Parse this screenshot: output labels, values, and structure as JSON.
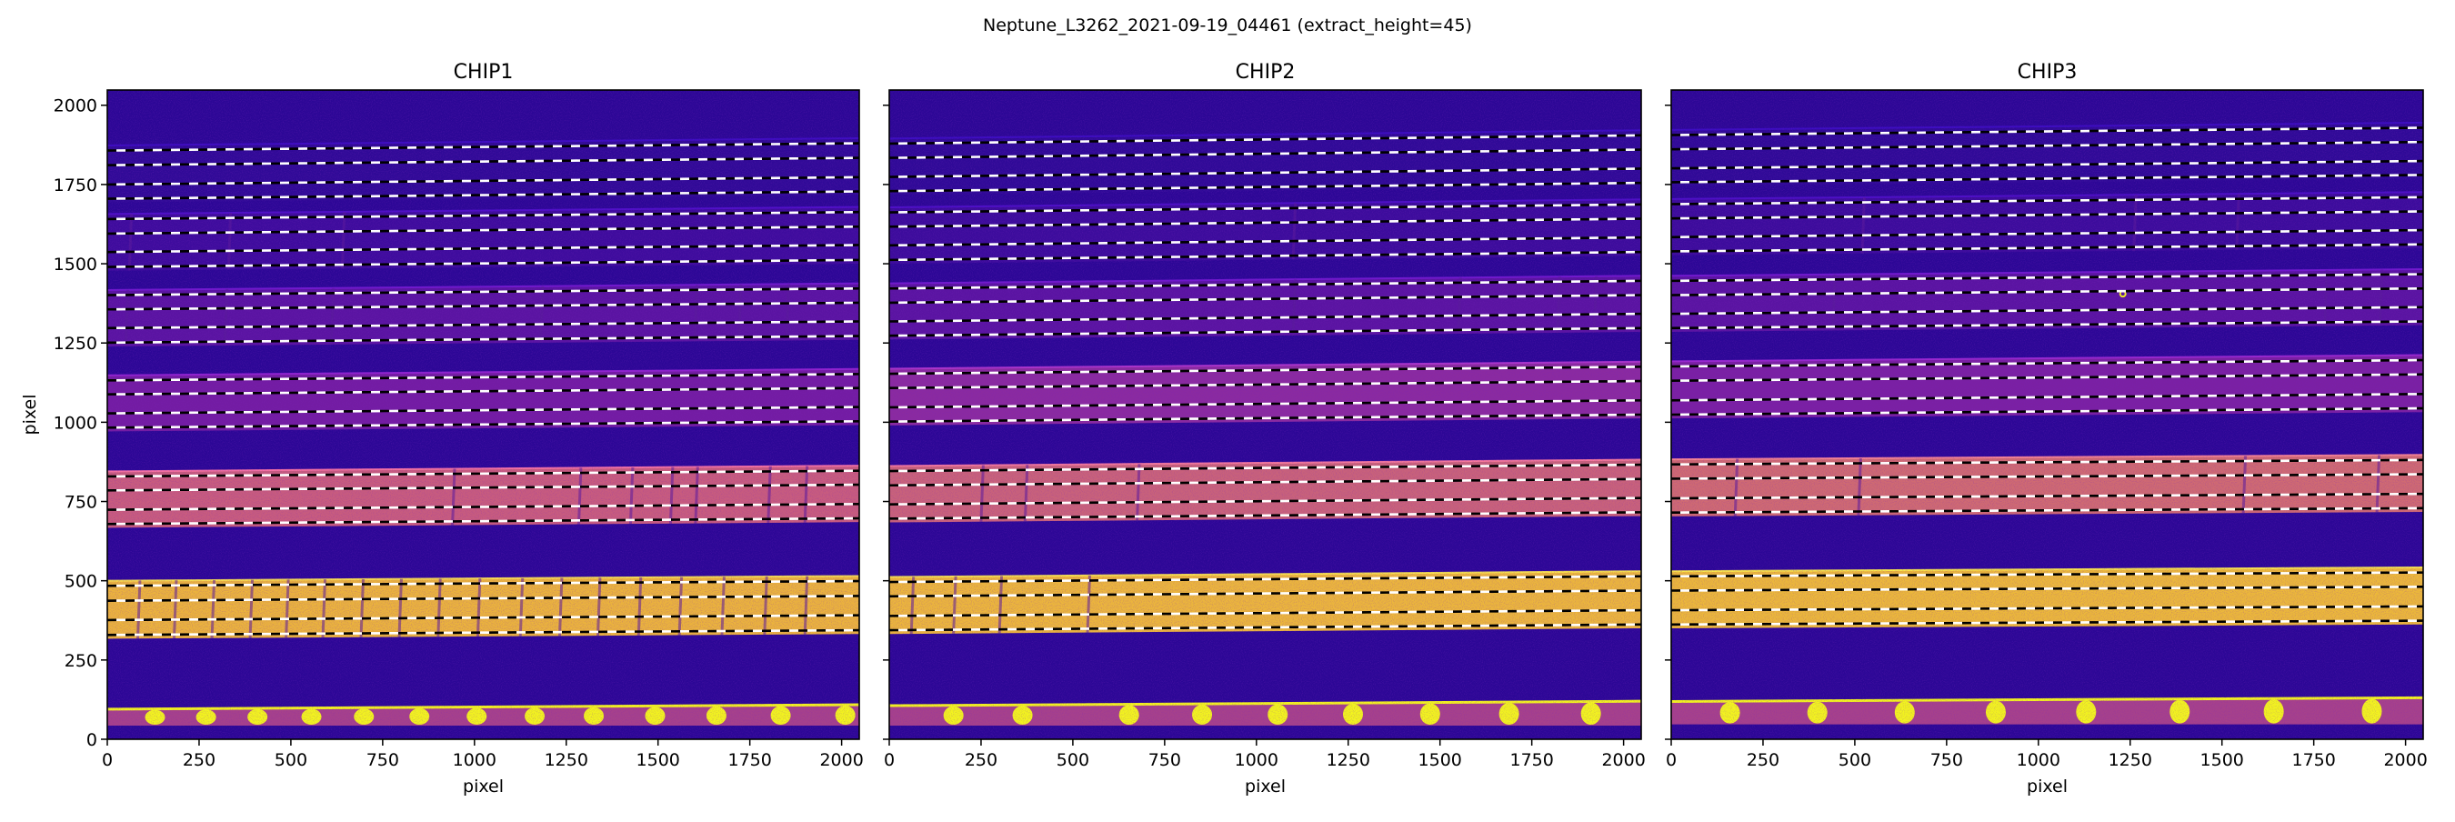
{
  "figure": {
    "suptitle": "Neptune_L3262_2021-09-19_04461  (extract_height=45)"
  },
  "chart_data": {
    "type": "heatmap",
    "title": "Neptune_L3262_2021-09-19_04461  (extract_height=45)",
    "colormap": "plasma",
    "xlim": [
      0,
      2048
    ],
    "ylim": [
      0,
      2048
    ],
    "xlabel": "pixel",
    "ylabel": "pixel",
    "xticks": [
      0,
      250,
      500,
      750,
      1000,
      1250,
      1500,
      1750,
      2000
    ],
    "yticks": [
      0,
      250,
      500,
      750,
      1000,
      1250,
      1500,
      1750,
      2000
    ],
    "xtick_labels": [
      "0",
      "250",
      "500",
      "750",
      "1000",
      "1250",
      "1500",
      "1750",
      "2000"
    ],
    "ytick_labels": [
      "0",
      "250",
      "500",
      "750",
      "1000",
      "1250",
      "1500",
      "1750",
      "2000"
    ],
    "colors": {
      "background": "#2c0796",
      "trace_light": "#ffffff",
      "trace_dark": "#000000",
      "bright_spot": "#f3f41e",
      "absorption": "#5a1a9a"
    },
    "panels": [
      {
        "title": "CHIP1",
        "orders": [
          {
            "color": "#300a97",
            "traces_left": [
              1857,
              1811,
              1750,
              1705
            ],
            "slope": 23,
            "absorption_x": []
          },
          {
            "color": "#3e0c9d",
            "traces_left": [
              1641,
              1595,
              1537,
              1490
            ],
            "slope": 22,
            "absorption_x": [
              60,
              330,
              640
            ]
          },
          {
            "color": "#5a14a2",
            "traces_left": [
              1401,
              1356,
              1297,
              1251
            ],
            "slope": 21,
            "absorption_x": [
              50,
              320,
              610,
              1180,
              1600,
              1720,
              1850
            ]
          },
          {
            "color": "#731ca3",
            "traces_left": [
              1132,
              1088,
              1028,
              983
            ],
            "slope": 20,
            "absorption_x": []
          },
          {
            "color": "#c85c7e",
            "traces_left": [
              829,
              785,
              724,
              679
            ],
            "slope": 18,
            "absorption_x": [
              940,
              1284,
              1425,
              1534,
              1602,
              1800,
              1900
            ]
          },
          {
            "color": "#ebb33d",
            "traces_left": [
              484,
              437,
              376,
              329
            ],
            "slope": 15,
            "absorption_x": [
              83,
              182,
              285,
              389,
              487,
              587,
              691,
              795,
              901,
              1009,
              1125,
              1232,
              1336,
              1447,
              1558,
              1674,
              1790,
              1900
            ]
          }
        ],
        "bottom_band": {
          "left": [
            43,
            95
          ],
          "right": [
            43,
            109
          ],
          "color": "#a6418b"
        },
        "bright_spots_x": [
          130,
          269,
          409,
          556,
          699,
          850,
          1006,
          1164,
          1325,
          1492,
          1659,
          1834,
          2010
        ],
        "xlabel": "pixel",
        "ylabel": "pixel"
      },
      {
        "title": "CHIP2",
        "orders": [
          {
            "color": "#2f0a97",
            "traces_left": [
              1879,
              1834,
              1774,
              1729
            ],
            "slope": 26,
            "absorption_x": []
          },
          {
            "color": "#3c0c9c",
            "traces_left": [
              1662,
              1617,
              1558,
              1512
            ],
            "slope": 25,
            "absorption_x": [
              1100
            ]
          },
          {
            "color": "#5a14a2",
            "traces_left": [
              1422,
              1377,
              1318,
              1273
            ],
            "slope": 24,
            "absorption_x": [
              650,
              1100,
              1550,
              1820,
              1920
            ]
          },
          {
            "color": "#8a2aa0",
            "traces_left": [
              1153,
              1108,
              1047,
              1002
            ],
            "slope": 22,
            "absorption_x": []
          },
          {
            "color": "#c9627a",
            "traces_left": [
              846,
              801,
              741,
              696
            ],
            "slope": 20,
            "absorption_x": [
              250,
              370,
              675
            ]
          },
          {
            "color": "#ecb63c",
            "traces_left": [
              496,
              451,
              389,
              344
            ],
            "slope": 18,
            "absorption_x": [
              60,
              175,
              300,
              540
            ]
          }
        ],
        "bottom_band": {
          "left": [
            43,
            106
          ],
          "right": [
            43,
            120
          ],
          "color": "#a6418b"
        },
        "bright_spots_x": [
          175,
          363,
          653,
          852,
          1058,
          1263,
          1473,
          1688,
          1911
        ],
        "xlabel": "pixel"
      },
      {
        "title": "CHIP3",
        "orders": [
          {
            "color": "#2f0a97",
            "traces_left": [
              1906,
              1861,
              1801,
              1757
            ],
            "slope": 23,
            "absorption_x": []
          },
          {
            "color": "#3c0c9c",
            "traces_left": [
              1688,
              1643,
              1584,
              1539
            ],
            "slope": 22,
            "absorption_x": [
              520,
              1260,
              1540
            ]
          },
          {
            "color": "#5a14a2",
            "traces_left": [
              1446,
              1401,
              1342,
              1297
            ],
            "slope": 21,
            "absorption_x": [
              440,
              1780,
              1930
            ]
          },
          {
            "color": "#7a20a3",
            "traces_left": [
              1176,
              1131,
              1069,
              1024
            ],
            "slope": 20,
            "absorption_x": []
          },
          {
            "color": "#cf6a72",
            "traces_left": [
              867,
              822,
              760,
              715
            ],
            "slope": 14,
            "absorption_x": [
              174,
              510,
              1558,
              1922
            ]
          },
          {
            "color": "#ecb83a",
            "traces_left": [
              514,
              469,
              407,
              362
            ],
            "slope": 12,
            "absorption_x": []
          }
        ],
        "bottom_band": {
          "left": [
            47,
            119
          ],
          "right": [
            47,
            131
          ],
          "color": "#a6418b"
        },
        "bright_spots_x": [
          160,
          398,
          636,
          884,
          1130,
          1385,
          1641,
          1908
        ],
        "hot_pixels": [
          [
            1230,
            1405
          ]
        ],
        "xlabel": "pixel"
      }
    ]
  }
}
